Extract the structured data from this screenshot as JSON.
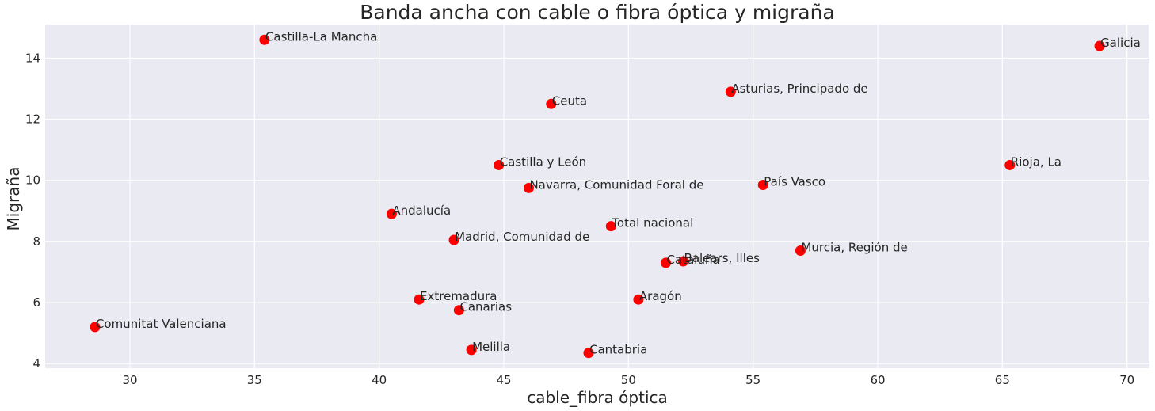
{
  "chart_data": {
    "type": "scatter",
    "title": "Banda ancha con cable o fibra óptica y migraña",
    "xlabel": "cable_fibra óptica",
    "ylabel": "Migraña",
    "xlim": [
      26.6,
      70.9
    ],
    "ylim": [
      3.85,
      15.1
    ],
    "xticks": [
      30,
      35,
      40,
      45,
      50,
      55,
      60,
      65,
      70
    ],
    "yticks": [
      4,
      6,
      8,
      10,
      12,
      14
    ],
    "grid": true,
    "background": "#eaeaf2",
    "marker_color": "#ff0000",
    "points": [
      {
        "label": "Castilla-La Mancha",
        "x": 35.4,
        "y": 14.6
      },
      {
        "label": "Galicia",
        "x": 68.9,
        "y": 14.4
      },
      {
        "label": "Asturias, Principado de",
        "x": 54.1,
        "y": 12.9
      },
      {
        "label": "Ceuta",
        "x": 46.9,
        "y": 12.5
      },
      {
        "label": "Castilla y León",
        "x": 44.8,
        "y": 10.5
      },
      {
        "label": "Rioja, La",
        "x": 65.3,
        "y": 10.5
      },
      {
        "label": "Navarra, Comunidad Foral de",
        "x": 46.0,
        "y": 9.75
      },
      {
        "label": "País Vasco",
        "x": 55.4,
        "y": 9.85
      },
      {
        "label": "Andalucía",
        "x": 40.5,
        "y": 8.9
      },
      {
        "label": "Total nacional",
        "x": 49.3,
        "y": 8.5
      },
      {
        "label": "Madrid, Comunidad de",
        "x": 43.0,
        "y": 8.05
      },
      {
        "label": "Murcia, Región de",
        "x": 56.9,
        "y": 7.7
      },
      {
        "label": "Cataluña",
        "x": 51.5,
        "y": 7.3
      },
      {
        "label": "Balears, Illes",
        "x": 52.2,
        "y": 7.35
      },
      {
        "label": "Extremadura",
        "x": 41.6,
        "y": 6.1
      },
      {
        "label": "Aragón",
        "x": 50.4,
        "y": 6.1
      },
      {
        "label": "Canarias",
        "x": 43.2,
        "y": 5.75
      },
      {
        "label": "Comunitat Valenciana",
        "x": 28.6,
        "y": 5.2
      },
      {
        "label": "Melilla",
        "x": 43.7,
        "y": 4.45
      },
      {
        "label": "Cantabria",
        "x": 48.4,
        "y": 4.35
      }
    ]
  }
}
